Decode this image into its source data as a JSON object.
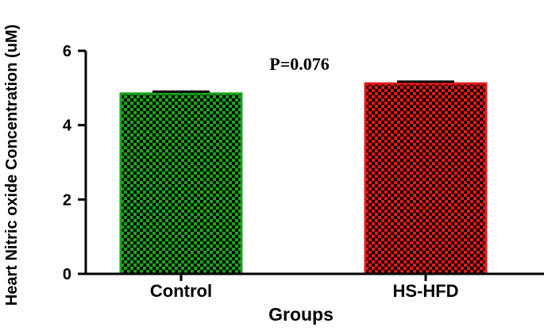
{
  "chart_data": {
    "type": "bar",
    "categories": [
      "Control",
      "HS-HFD"
    ],
    "values": [
      4.85,
      5.12
    ],
    "errors": [
      0.05,
      0.05
    ],
    "colors": [
      "#1aa51a",
      "#e81818"
    ],
    "pattern_color": "#000000",
    "xlabel": "Groups",
    "ylabel": "Heart Nitric oxide Concentration (uM)",
    "ylim": [
      0,
      6
    ],
    "yticks": [
      0,
      2,
      4,
      6
    ],
    "annotation": "P=0.076",
    "grid": false,
    "legend": "none"
  }
}
